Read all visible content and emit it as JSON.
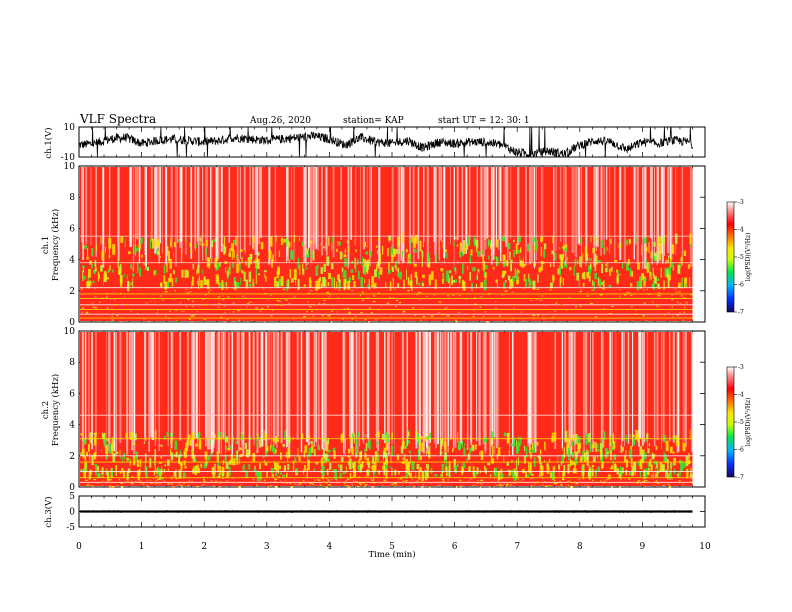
{
  "header": {
    "title": "VLF Spectra",
    "date": "Aug.26, 2020",
    "station": "station= KAP",
    "start": "start UT = 12: 30: 1"
  },
  "colors": {
    "spec_high": "#ff2a1a",
    "spec_mid": "#ffe600",
    "spec_low": "#33ee33",
    "colorbar": [
      "#1a0066",
      "#0033ff",
      "#00b3ff",
      "#00e64d",
      "#ccff00",
      "#ffe600",
      "#ff6600",
      "#ff0000",
      "#ff8080",
      "#ffffff"
    ]
  },
  "chart_data": [
    {
      "type": "line",
      "name": "ch1-waveform",
      "ylabel": "ch.1(V)",
      "ylim": [
        -10,
        10
      ],
      "yticks": [
        "10",
        "-10"
      ],
      "xlim": [
        0,
        10
      ],
      "x": [
        0,
        0.25,
        0.5,
        0.75,
        1,
        1.25,
        1.5,
        1.75,
        2,
        2.25,
        2.5,
        2.75,
        3,
        3.25,
        3.5,
        3.75,
        4,
        4.25,
        4.5,
        4.75,
        5,
        5.25,
        5.5,
        5.75,
        6,
        6.25,
        6.5,
        6.75,
        7,
        7.25,
        7.5,
        7.75,
        8,
        8.25,
        8.5,
        8.75,
        9,
        9.25,
        9.5,
        9.75,
        9.8
      ],
      "y": [
        -2,
        -1,
        2,
        3,
        -1,
        1,
        2,
        1,
        0,
        1,
        3,
        2,
        1,
        2,
        3,
        4,
        2,
        -2,
        3,
        0,
        -1,
        1,
        -4,
        0,
        -1,
        0,
        0,
        -2,
        -7,
        -8,
        -6,
        -8,
        -2,
        1,
        0,
        -5,
        0,
        -1,
        1,
        0,
        -2
      ]
    },
    {
      "type": "heatmap",
      "name": "ch1-spectrogram",
      "ylabel": "ch.1\nFrequency (kHz)",
      "ylim": [
        0,
        10
      ],
      "yticks": [
        "0",
        "2",
        "4",
        "6",
        "8",
        "10"
      ],
      "xlim": [
        0,
        10
      ],
      "data_xmax": 9.8,
      "bands": [
        {
          "range": [
            5.5,
            10
          ],
          "level": "high"
        },
        {
          "range": [
            2.2,
            5.5
          ],
          "level": "mid-low mixed"
        },
        {
          "range": [
            0,
            2.2
          ],
          "level": "high"
        }
      ],
      "colorbar": {
        "label": "log(PSD)(V²/Hz)",
        "range": [
          -7,
          -3
        ],
        "ticks": [
          "-3",
          "-4",
          "-5",
          "-6",
          "-7"
        ]
      }
    },
    {
      "type": "heatmap",
      "name": "ch2-spectrogram",
      "ylabel": "ch.2\nFrequency (kHz)",
      "ylim": [
        0,
        10
      ],
      "yticks": [
        "0",
        "2",
        "4",
        "6",
        "8",
        "10"
      ],
      "xlim": [
        0,
        10
      ],
      "data_xmax": 9.8,
      "bands": [
        {
          "range": [
            3.5,
            10
          ],
          "level": "high"
        },
        {
          "range": [
            0.5,
            3.5
          ],
          "level": "mid-low mixed"
        },
        {
          "range": [
            0,
            0.5
          ],
          "level": "high"
        }
      ],
      "colorbar": {
        "label": "log(PSD)(V²/Hz)",
        "range": [
          -7,
          -3
        ],
        "ticks": [
          "-3",
          "-4",
          "-5",
          "-6",
          "-7"
        ]
      }
    },
    {
      "type": "line",
      "name": "ch3-waveform",
      "ylabel": "ch.3(V)",
      "ylim": [
        -5,
        5
      ],
      "yticks": [
        "5",
        "0",
        "-5"
      ],
      "xlim": [
        0,
        10
      ],
      "x": [
        0,
        9.8
      ],
      "y": [
        0,
        0
      ]
    }
  ],
  "xaxis": {
    "label": "Time (min)",
    "ticks": [
      "0",
      "1",
      "2",
      "3",
      "4",
      "5",
      "6",
      "7",
      "8",
      "9",
      "10"
    ]
  }
}
